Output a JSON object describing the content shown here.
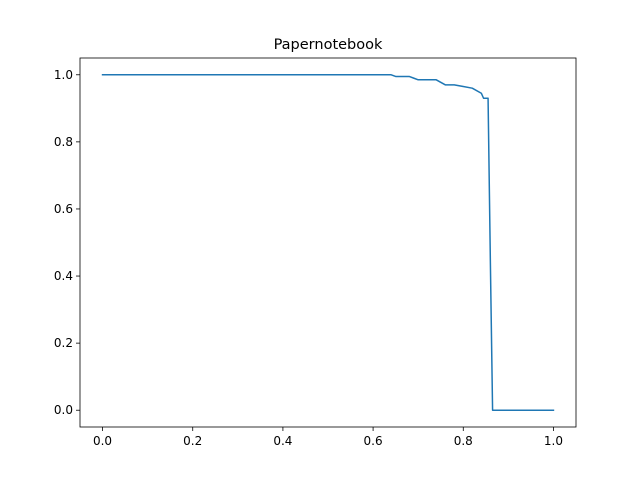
{
  "chart_data": {
    "type": "line",
    "title": "Papernotebook",
    "xlabel": "",
    "ylabel": "",
    "xlim": [
      -0.05,
      1.05
    ],
    "ylim": [
      -0.05,
      1.05
    ],
    "grid": false,
    "x_ticks": [
      0.0,
      0.2,
      0.4,
      0.6,
      0.8,
      1.0
    ],
    "x_tick_labels": [
      "0.0",
      "0.2",
      "0.4",
      "0.6",
      "0.8",
      "1.0"
    ],
    "y_ticks": [
      0.0,
      0.2,
      0.4,
      0.6,
      0.8,
      1.0
    ],
    "y_tick_labels": [
      "0.0",
      "0.2",
      "0.4",
      "0.6",
      "0.8",
      "1.0"
    ],
    "series": [
      {
        "color": "#1f77b4",
        "x": [
          0.0,
          0.64,
          0.65,
          0.68,
          0.69,
          0.7,
          0.74,
          0.76,
          0.78,
          0.8,
          0.82,
          0.84,
          0.845,
          0.855,
          0.86,
          0.865,
          1.0
        ],
        "y": [
          1.0,
          1.0,
          0.995,
          0.995,
          0.99,
          0.985,
          0.985,
          0.97,
          0.97,
          0.965,
          0.96,
          0.945,
          0.93,
          0.93,
          0.45,
          0.0,
          0.0
        ]
      }
    ]
  }
}
